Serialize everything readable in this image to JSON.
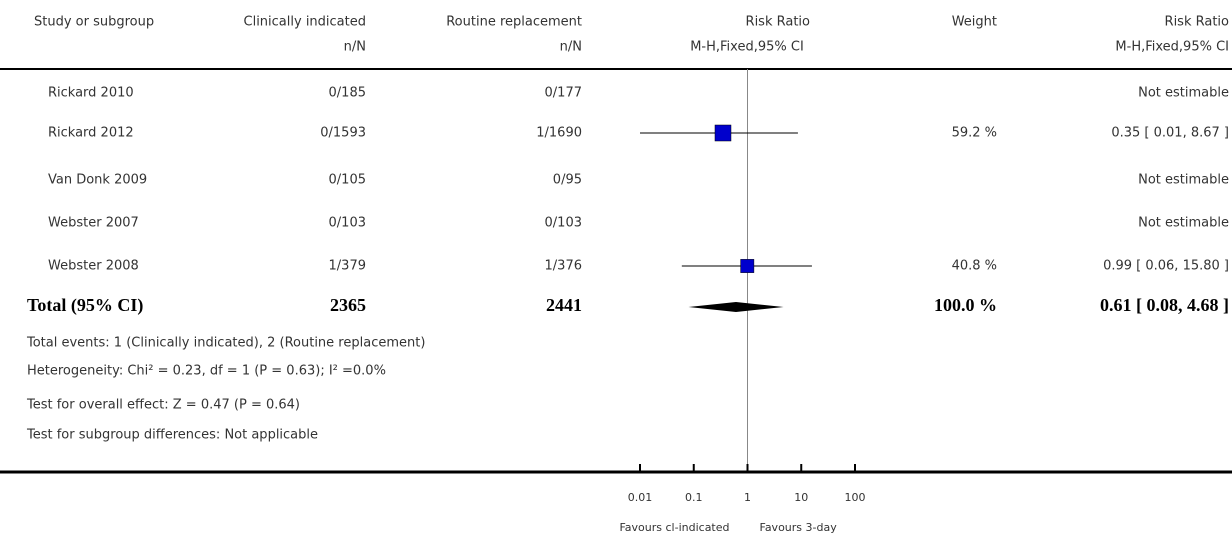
{
  "chart_data": {
    "type": "forest",
    "headers": [
      "Study or subgroup",
      "Clinically indicated",
      "Routine replacement",
      "Risk Ratio",
      "Weight",
      "Risk Ratio"
    ],
    "subheaders": [
      "n/N",
      "n/N",
      "M-H,Fixed,95% CI",
      "M-H,Fixed,95% CI"
    ],
    "categories": [
      "Rickard 2010",
      "Rickard 2012",
      "Van Donk 2009",
      "Webster 2007",
      "Webster 2008"
    ],
    "clinically": [
      "0/185",
      "0/1593",
      "0/105",
      "0/103",
      "1/379"
    ],
    "routine": [
      "0/177",
      "1/1690",
      "0/95",
      "0/103",
      "1/376"
    ],
    "values": [
      null,
      0.35,
      null,
      null,
      0.99
    ],
    "lower": [
      null,
      0.01,
      null,
      null,
      0.06
    ],
    "upper": [
      null,
      8.67,
      null,
      null,
      15.8
    ],
    "weights": [
      null,
      59.2,
      null,
      null,
      40.8
    ],
    "weight_labels": [
      null,
      "59.2 %",
      null,
      null,
      "40.8 %"
    ],
    "ci_labels": [
      "Not estimable",
      "0.35 [ 0.01, 8.67 ]",
      "Not estimable",
      "Not estimable",
      "0.99 [ 0.06, 15.80 ]"
    ],
    "color": "#0000cc",
    "total": {
      "label": "Total (95% CI)",
      "clinically": "2365",
      "routine": "2441",
      "value": 0.61,
      "lower": 0.08,
      "upper": 4.68,
      "weight": 100.0,
      "weight_label": "100.0 %",
      "ci_label": "0.61 [ 0.08, 4.68 ]"
    },
    "notes": [
      "Total events: 1 (Clinically indicated), 2 (Routine replacement)",
      "Heterogeneity: Chi² = 0.23, df = 1 (P = 0.63); I² =0.0%",
      "Test for overall effect: Z = 0.47 (P = 0.64)",
      "Test for subgroup differences: Not applicable"
    ],
    "xlog": true,
    "xlim": [
      0.01,
      100
    ],
    "xticks": [
      0.01,
      0.1,
      1,
      10,
      100
    ],
    "xlabels": [
      "Favours cl-indicated",
      "Favours 3-day"
    ]
  }
}
